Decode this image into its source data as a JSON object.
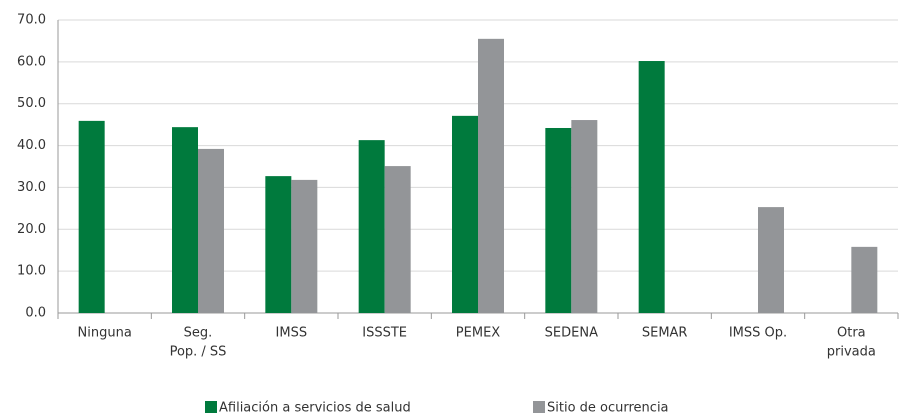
{
  "chart_data": {
    "type": "bar",
    "categories": [
      [
        "Ninguna"
      ],
      [
        "Seg.",
        "Pop. / SS"
      ],
      [
        "IMSS"
      ],
      [
        "ISSSTE"
      ],
      [
        "PEMEX"
      ],
      [
        "SEDENA"
      ],
      [
        "SEMAR"
      ],
      [
        "IMSS Op."
      ],
      [
        "Otra",
        "privada"
      ]
    ],
    "series": [
      {
        "name": "Afiliación a servicios de salud",
        "color": "#007a3d",
        "values": [
          45.9,
          44.4,
          32.7,
          41.3,
          47.1,
          44.2,
          60.2,
          null,
          null
        ]
      },
      {
        "name": "Sitio de ocurrencia",
        "color": "#939598",
        "values": [
          null,
          39.2,
          31.8,
          35.1,
          65.5,
          46.1,
          null,
          25.3,
          15.8
        ]
      }
    ],
    "ylim": [
      0,
      70
    ],
    "yticks": [
      {
        "value": 0,
        "label": "0.0"
      },
      {
        "value": 10,
        "label": "10.0"
      },
      {
        "value": 20,
        "label": "20.0"
      },
      {
        "value": 30,
        "label": "30.0"
      },
      {
        "value": 40,
        "label": "40.0"
      },
      {
        "value": 50,
        "label": "50.0"
      },
      {
        "value": 60,
        "label": "60.0"
      },
      {
        "value": 70,
        "label": "70.0"
      }
    ],
    "grid": true,
    "legend": "bottom"
  }
}
